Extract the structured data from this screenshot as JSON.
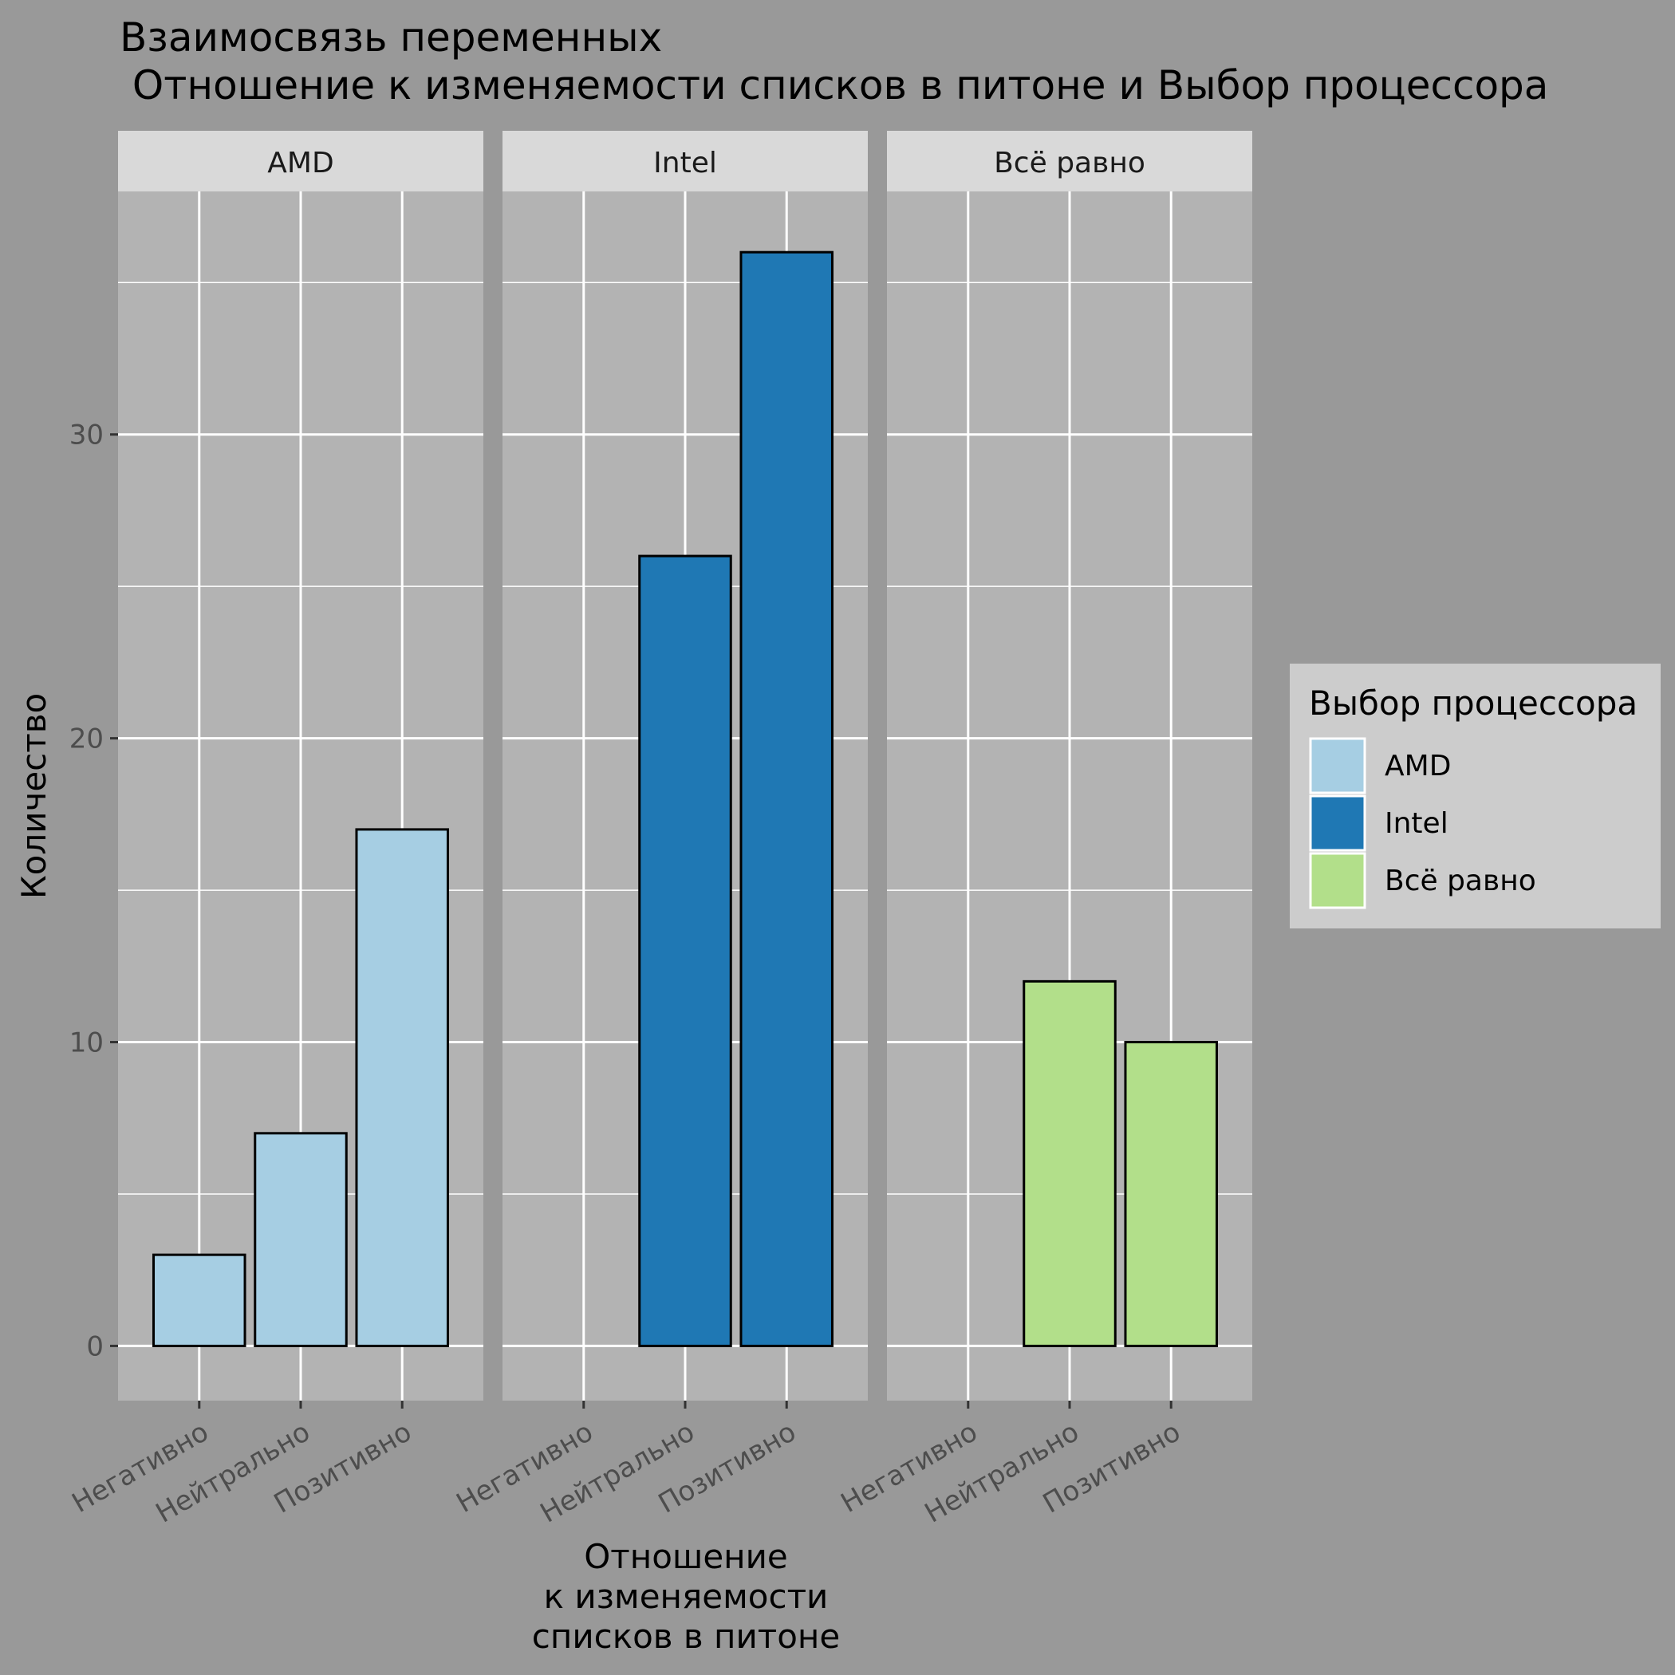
{
  "chart_data": {
    "type": "bar",
    "title_lines": [
      "Взаимосвязь переменных",
      " Отношение к изменяемости списков в питоне и Выбор процессора"
    ],
    "xlabel_lines": [
      "Отношение",
      "к изменяемости",
      "списков в питоне"
    ],
    "ylabel": "Количество",
    "categories": [
      "Негативно",
      "Нейтрально",
      "Позитивно"
    ],
    "ylim": [
      -1.8,
      38
    ],
    "yticks": [
      "0",
      "10",
      "20",
      "30"
    ],
    "grid": true,
    "facets": [
      {
        "name": "AMD",
        "color": "#A6CEE3",
        "values": [
          3,
          7,
          17
        ]
      },
      {
        "name": "Intel",
        "color": "#1F78B4",
        "values": [
          0,
          26,
          36
        ]
      },
      {
        "name": "Всё равно",
        "color": "#B2DF8A",
        "values": [
          0,
          12,
          10
        ]
      }
    ],
    "legend": {
      "title": "Выбор процессора",
      "placement": "right",
      "items": [
        {
          "label": "AMD",
          "color": "#A6CEE3"
        },
        {
          "label": "Intel",
          "color": "#1F78B4"
        },
        {
          "label": "Всё равно",
          "color": "#B2DF8A"
        }
      ]
    }
  }
}
